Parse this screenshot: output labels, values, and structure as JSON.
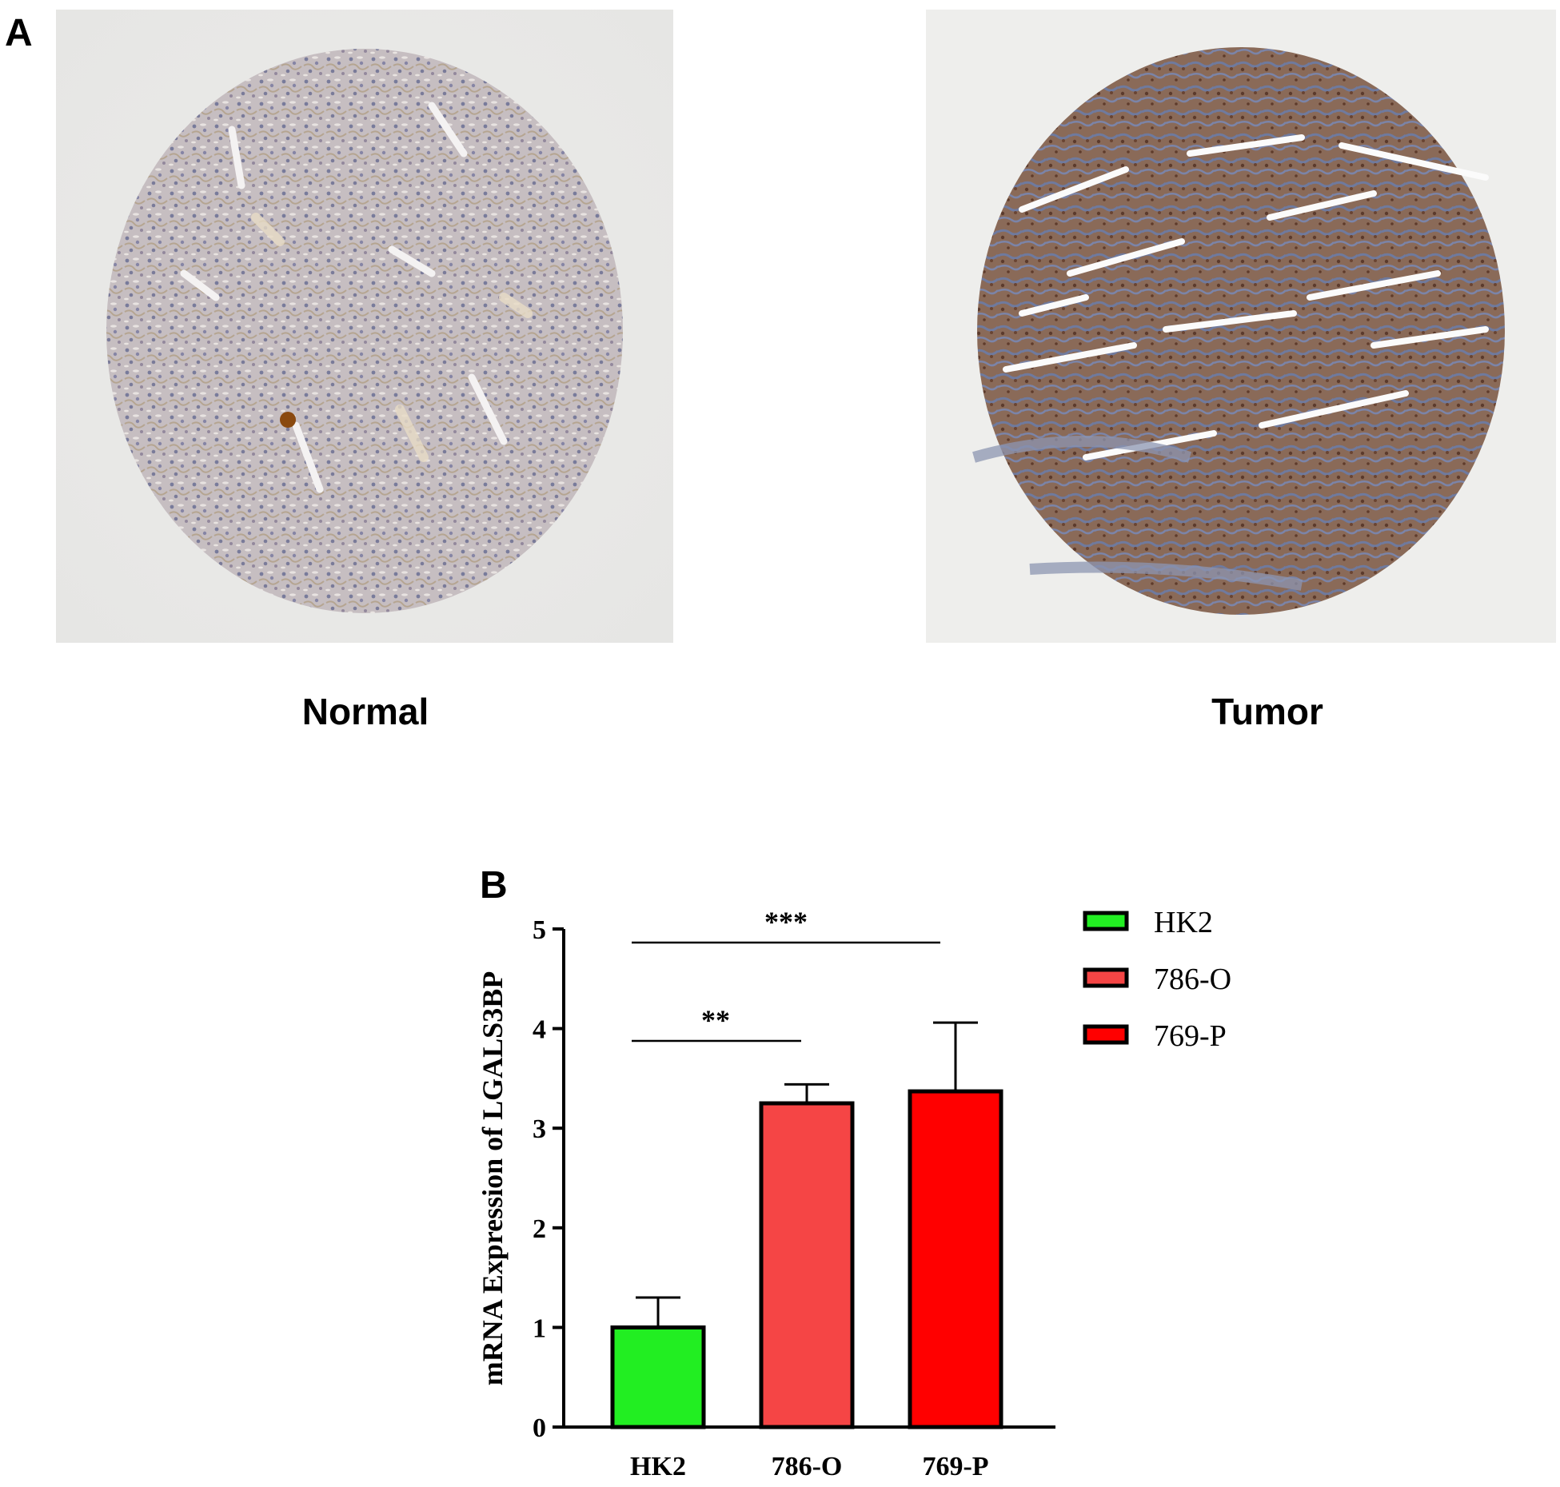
{
  "panel_a": {
    "letter": "A",
    "images": [
      {
        "caption": "Normal",
        "description_icon": "ihc-tissue-core-normal"
      },
      {
        "caption": "Tumor",
        "description_icon": "ihc-tissue-core-tumor"
      }
    ]
  },
  "panel_b": {
    "letter": "B"
  },
  "chart_data": {
    "type": "bar",
    "categories": [
      "HK2",
      "786-O",
      "769-P"
    ],
    "values": [
      1.0,
      3.25,
      3.37
    ],
    "errors": [
      0.3,
      0.19,
      0.69
    ],
    "colors": [
      "#22ee22",
      "#f54545",
      "#ff0000"
    ],
    "title": "",
    "xlabel": "",
    "ylabel": "mRNA Expression of LGALS3BP",
    "ylim": [
      0,
      5
    ],
    "yticks": [
      0,
      1,
      2,
      3,
      4,
      5
    ],
    "legend": {
      "placement": "right",
      "entries": [
        "HK2",
        "786-O",
        "769-P"
      ]
    },
    "significance": [
      {
        "from": "HK2",
        "to": "786-O",
        "label": "**"
      },
      {
        "from": "HK2",
        "to": "769-P",
        "label": "***"
      }
    ],
    "grid": false
  }
}
